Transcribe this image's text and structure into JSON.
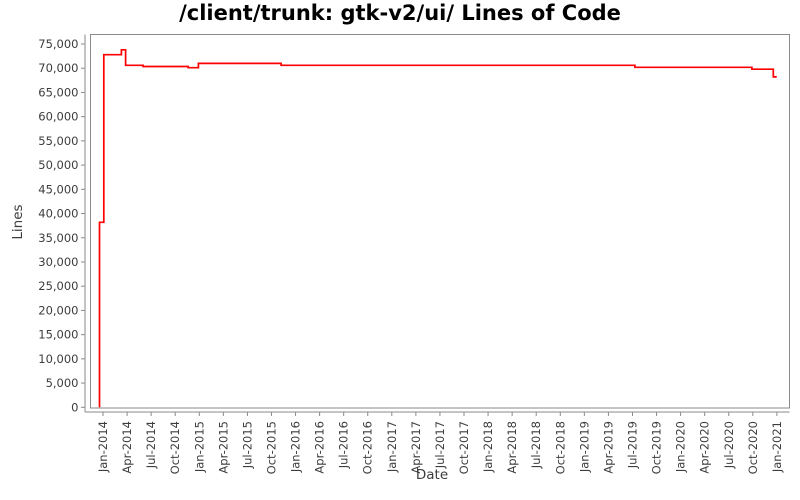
{
  "title": "/client/trunk: gtk-v2/ui/ Lines of Code",
  "chart_data": {
    "type": "line",
    "subtype": "step-after",
    "title": "/client/trunk: gtk-v2/ui/ Lines of Code",
    "xlabel": "Date",
    "ylabel": "Lines",
    "ylim": [
      0,
      75000
    ],
    "y_tick_step": 5000,
    "x_tick_interval_months": 3,
    "grid": false,
    "legend": "none",
    "colors": {
      "line": "#ff0000",
      "axis": "#8a8a8a",
      "tick_label": "#3d3d3d",
      "background": "#ffffff"
    },
    "x_tick_labels": [
      "Jan-2014",
      "Apr-2014",
      "Jul-2014",
      "Oct-2014",
      "Jan-2015",
      "Apr-2015",
      "Jul-2015",
      "Oct-2015",
      "Jan-2016",
      "Apr-2016",
      "Jul-2016",
      "Oct-2016",
      "Jan-2017",
      "Apr-2017",
      "Jul-2017",
      "Oct-2017",
      "Jan-2018",
      "Apr-2018",
      "Jul-2018",
      "Oct-2018",
      "Jan-2019",
      "Apr-2019",
      "Jul-2019",
      "Oct-2019",
      "Jan-2020",
      "Apr-2020",
      "Jul-2020",
      "Oct-2020",
      "Jan-2021"
    ],
    "y_tick_labels": [
      "0",
      "5,000",
      "10,000",
      "15,000",
      "20,000",
      "25,000",
      "30,000",
      "35,000",
      "40,000",
      "45,000",
      "50,000",
      "55,000",
      "60,000",
      "65,000",
      "70,000",
      "75,000"
    ],
    "series": [
      {
        "name": "gtk-v2/ui lines of code",
        "points": [
          [
            "2013-12-18",
            0
          ],
          [
            "2013-12-18",
            38200
          ],
          [
            "2014-01-04",
            72800
          ],
          [
            "2014-03-10",
            73800
          ],
          [
            "2014-03-26",
            70600
          ],
          [
            "2014-06-01",
            70350
          ],
          [
            "2014-11-20",
            70100
          ],
          [
            "2014-12-28",
            71000
          ],
          [
            "2015-11-07",
            70600
          ],
          [
            "2019-07-10",
            70200
          ],
          [
            "2020-09-28",
            69800
          ],
          [
            "2020-12-18",
            68200
          ],
          [
            "2020-12-31",
            68200
          ]
        ]
      }
    ]
  }
}
